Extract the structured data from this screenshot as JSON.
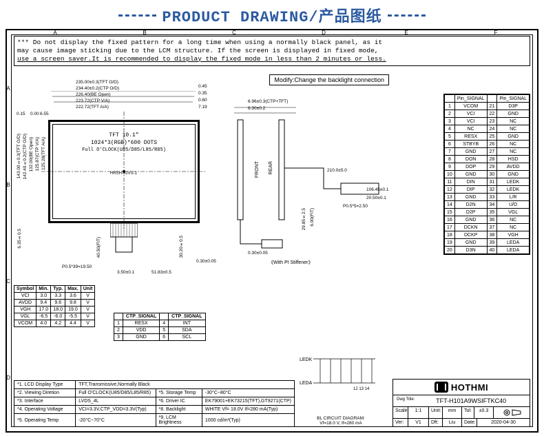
{
  "title": "PRODUCT DRAWING/产品图纸",
  "title_color": "#2c5aa0",
  "warning_lines": [
    "*** Do not display the fixed pattern for a long time when using a normally black panel, as it",
    " may cause image sticking due to the LCM structure. If the screen is displayed in fixed mode,",
    " use a screen saver.It is recommended to display the fixed mode in less than 2 minutes or less."
  ],
  "modify_note": "Modify:Change the backlight connection",
  "zone_cols": [
    "A",
    "B",
    "C",
    "D",
    "E",
    "F"
  ],
  "zone_rows": [
    "A",
    "B",
    "C",
    "D"
  ],
  "tft_label1": "TFT 10.1\"",
  "tft_label2": "1024*3(RGB)*600 DOTS",
  "tft_label3": "Full O'CLOCK(U85/D85/L85/R85)",
  "top_dims": [
    "235.00±0.3(TFT O/D)",
    "234.40±0.2(CTP O/D)",
    "226.40(BE Open)",
    "223.72(CTP V/A)",
    "222.72(TFT A/A)"
  ],
  "top_right_vals": [
    "0.45",
    "0.35",
    "0.60",
    "7.19"
  ],
  "left_dims": [
    "143.00±0.3(TFT O/D)",
    "142.40±0.2(CTP O/D)",
    "132.00(BE Open)",
    "125.87(CTP V/A)",
    "125.28(TFT A/A)"
  ],
  "left_top_vals": [
    "0.15",
    "0.00",
    "6.55"
  ],
  "bot_left": "6.35±0.5",
  "bot_flex": "40.50(FIT)",
  "bot_pitch": "P0.5*39=19.50",
  "bot_dim1": "3.50±0.1",
  "bot_dim2": "51.83±0.5",
  "bot_dim3": "30.20±0.5",
  "bot_dim4": "0.30±0.05",
  "conn_label": "HRSH-02VS-1",
  "right_top1": "6.96±0.3(CTP+TFT)",
  "right_top2": "6.30±0.2",
  "front_label": "FRONT",
  "rear_label": "REAR",
  "pi_stiff": "《With PI Stiffener》",
  "side_dim1": "210.0±5.0",
  "side_dim2": "29.85±2.5",
  "side_dim3": "6.00(FIT)",
  "side_dim4": "106.45±0.1",
  "side_dim5": "20.50±0.1",
  "side_dim6": "P0.5*5=2.50",
  "side_dim7": "0.30±0.05",
  "spec_header": [
    "Symbol",
    "Min.",
    "Typ.",
    "Max.",
    "Unit"
  ],
  "spec_rows": [
    [
      "VCI",
      "3.0",
      "3.3",
      "3.6",
      "V"
    ],
    [
      "AVDD",
      "9.4",
      "9.6",
      "9.8",
      "V"
    ],
    [
      "VGH",
      "17.0",
      "18.0",
      "19.0",
      "V"
    ],
    [
      "VGL",
      "-6.5",
      "-6.0",
      "-5.5",
      "V"
    ],
    [
      "VCOM",
      "4.0",
      "4.2",
      "4.4",
      "V"
    ]
  ],
  "ctp_header": [
    "",
    "CTP_SIGNAL",
    "",
    "CTP_SIGNAL"
  ],
  "ctp_rows": [
    [
      "1",
      "RESX",
      "4",
      "INT"
    ],
    [
      "2",
      "VDD",
      "5",
      "SDA"
    ],
    [
      "3",
      "GND",
      "6",
      "SCL"
    ]
  ],
  "params": [
    [
      "*1. LCD Display Type",
      "TFT,Transmissive,Normally Black"
    ],
    [
      "*2. Viewing Diretion",
      "Full O'CLOCK(U85/D85/L85/R85)",
      "*5. Storage Temp",
      "-30°C~80°C"
    ],
    [
      "*3. Interface",
      "LVDS_4L",
      "*6. Driver IC",
      "EK79001+EK73215(TFT),GT9271(CTP)"
    ],
    [
      "*4. Operating Voltage",
      "VCI=3.3V,CTP_VDD=3.3V(Typ)",
      "*8. Backlight",
      "WHITE Vf= 18.0V If=280 mA(Typ)"
    ],
    [
      "*5. Operating Temp",
      "-20°C~70°C",
      "*9. LCM Brightness",
      "1000 cd/m²(Typ)"
    ]
  ],
  "pin_header": [
    "",
    "Pin_SIGNAL",
    "",
    "Pin_SIGNAL"
  ],
  "pins": [
    [
      "1",
      "VCOM",
      "21",
      "D3P"
    ],
    [
      "2",
      "VCI",
      "22",
      "GND"
    ],
    [
      "3",
      "VCI",
      "23",
      "NC"
    ],
    [
      "4",
      "NC",
      "24",
      "NC"
    ],
    [
      "5",
      "RESX",
      "25",
      "GND"
    ],
    [
      "6",
      "STBYB",
      "26",
      "NC"
    ],
    [
      "7",
      "GND",
      "27",
      "NC"
    ],
    [
      "8",
      "DON",
      "28",
      "HSD"
    ],
    [
      "9",
      "DOP",
      "29",
      "AVDD"
    ],
    [
      "10",
      "GND",
      "30",
      "GND"
    ],
    [
      "11",
      "DIN",
      "31",
      "LEDK"
    ],
    [
      "12",
      "DIP",
      "32",
      "LEDK"
    ],
    [
      "13",
      "GND",
      "33",
      "L/R"
    ],
    [
      "14",
      "D2N",
      "34",
      "U/D"
    ],
    [
      "15",
      "D2P",
      "35",
      "VGL"
    ],
    [
      "16",
      "GND",
      "36",
      "NC"
    ],
    [
      "17",
      "DCKN",
      "37",
      "NC"
    ],
    [
      "18",
      "DCKP",
      "38",
      "VGH"
    ],
    [
      "19",
      "GND",
      "39",
      "LEDA"
    ],
    [
      "20",
      "D3N",
      "40",
      "LEDA"
    ]
  ],
  "logo_name": "HOTHMI",
  "dwg_title_pre": "Dwg Title:",
  "dwg_title": "TFT-H101A9WSIFTKC40",
  "tb": {
    "scale_l": "Scale:",
    "scale": "1:1",
    "unit_l": "Unit:",
    "unit": "mm",
    "tol_l": "Tol:",
    "tol": "±0.3",
    "ver_l": "Ver:",
    "ver": "V1",
    "dft_l": "Dft:",
    "dft": "Liu",
    "date_l": "Date:",
    "date": "2020-04-30"
  },
  "bl": {
    "title": "BL CIRCUIT DIAGRAM:",
    "spec": "Vf=18.0 V, If=280 mA",
    "ledk": "LEDK",
    "leda": "LEDA",
    "pins": "12 13 14"
  }
}
